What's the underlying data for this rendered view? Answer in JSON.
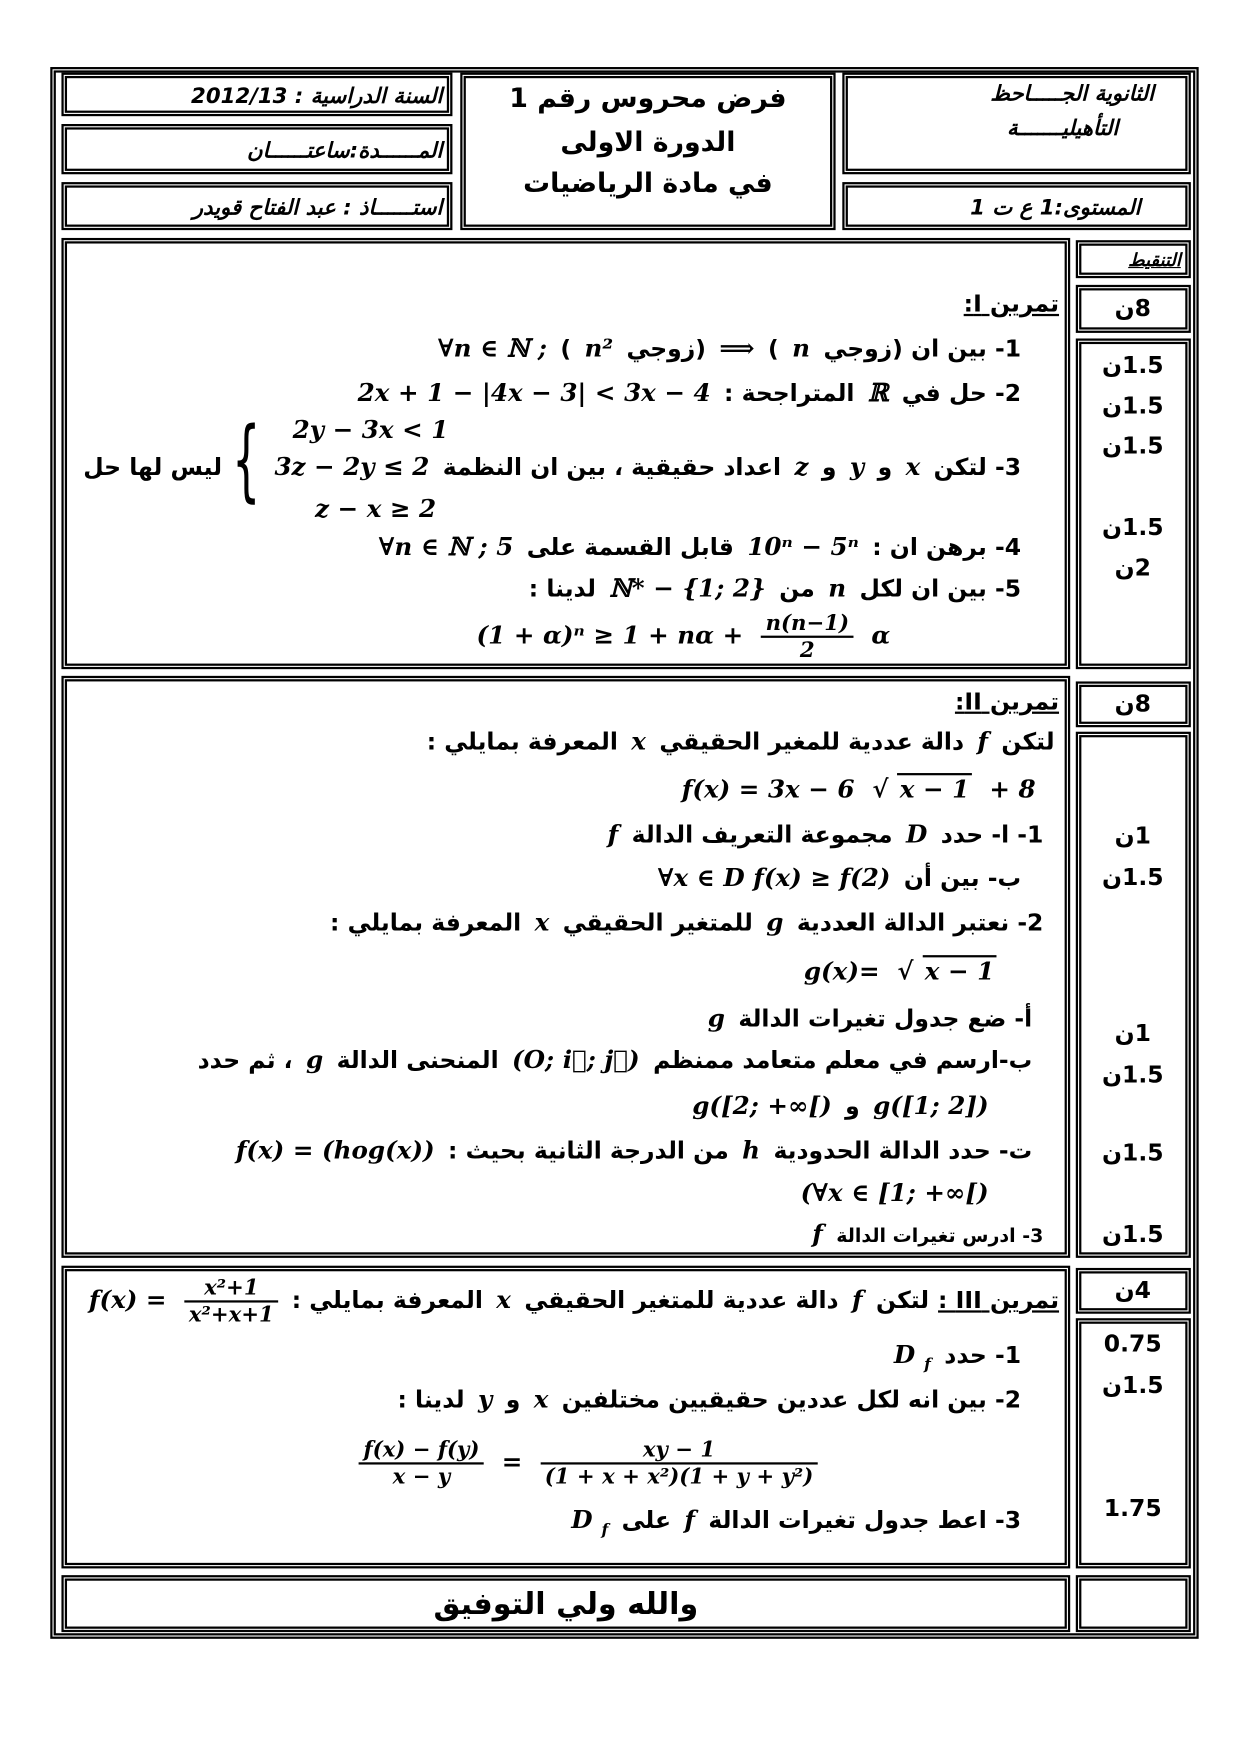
{
  "header": {
    "year": "السنة الدراسية : 2012/13",
    "duration": "المــــــدة:ساعتــــــان",
    "teacher": "استــــــاذ : عبد الفتاح قويدر",
    "title_lines": [
      "فرض محروس رقم 1",
      "الدورة الاولى",
      "في مادة الرياضيات"
    ],
    "school_lines": [
      "الثانوية الجـــــاحظ",
      "التأهيليـــــــة"
    ],
    "level": "المستوى:1 ع ت 1"
  },
  "grading_header": "التنقيط",
  "sections": [
    {
      "points": "8ن",
      "scores": [
        "1.5ن",
        "1.5ن",
        "1.5ن",
        "1.5ن",
        "2ن"
      ],
      "system": {
        "rows": [
          "2y − 3x < 1",
          "z − x ≥ 2"
        ]
      },
      "lines": [
        {
          "segs": [
            {
              "t": "تمرين I:",
              "u": true
            }
          ]
        },
        {
          "segs": [
            {
              "t": "1- بين ان (زوجي"
            },
            {
              "m": "n"
            },
            {
              "t": ")"
            },
            {
              "m": "⟹"
            },
            {
              "t": "(زوجي"
            },
            {
              "m": "n²"
            },
            {
              "t": ")"
            },
            {
              "m": "∀n ∈ ℕ ;"
            }
          ]
        },
        {
          "segs": [
            {
              "t": "2- حل في"
            },
            {
              "m": "ℝ"
            },
            {
              "t": "المتراجحة :"
            },
            {
              "m": "2x + 1 − |4x − 3| < 3x − 4"
            }
          ]
        },
        {
          "segs": [
            {
              "t": "3- لتكن"
            },
            {
              "m": "x"
            },
            {
              "t": "و"
            },
            {
              "m": "y"
            },
            {
              "t": "و"
            },
            {
              "m": "z"
            },
            {
              "t": "اعداد حقيقية ، بين ان النظمة"
            },
            {
              "m": "3z − 2y ≤ 2"
            },
            {
              "br": "{"
            },
            {
              "t": "ليس لها حل"
            }
          ]
        },
        {
          "segs": [
            {
              "t": "4- برهن ان :"
            },
            {
              "m": "10ⁿ − 5ⁿ"
            },
            {
              "t": "قابل القسمة على"
            },
            {
              "m": "∀n ∈ ℕ ; 5"
            }
          ]
        },
        {
          "segs": [
            {
              "t": "5- بين ان لكل"
            },
            {
              "m": "n"
            },
            {
              "t": "من"
            },
            {
              "m": "ℕ* − {1; 2}"
            },
            {
              "t": "لدينا :"
            }
          ]
        },
        {
          "segs": [
            {
              "m": "(1 + α)ⁿ ≥ 1 + nα +"
            },
            {
              "num": "n(n−1)",
              "den": "2"
            },
            {
              "m": "α"
            }
          ]
        }
      ]
    },
    {
      "points": "8ن",
      "scores": [
        "1ن",
        "1.5ن",
        "1ن",
        "1.5ن",
        "1.5ن",
        "1.5ن"
      ],
      "lines": [
        {
          "segs": [
            {
              "t": "تمرين II:",
              "u": true
            }
          ]
        },
        {
          "segs": [
            {
              "t": "لتكن"
            },
            {
              "m": "f"
            },
            {
              "t": "دالة عددية للمغير الحقيقي"
            },
            {
              "m": "x"
            },
            {
              "t": "المعرفة بمايلي :"
            }
          ]
        },
        {
          "segs": [
            {
              "m": "f(x)  =  3x − 6"
            },
            {
              "rad": "√",
              "sqrt": "x − 1"
            },
            {
              "m": "+ 8"
            }
          ]
        },
        {
          "segs": [
            {
              "t": "1- ا- حدد"
            },
            {
              "m": "D"
            },
            {
              "t": "مجموعة التعريف الدالة"
            },
            {
              "m": "f"
            }
          ]
        },
        {
          "segs": [
            {
              "t": "ب- بين أن"
            },
            {
              "m": "∀x ∈ D f(x) ≥ f(2)"
            }
          ]
        },
        {
          "segs": [
            {
              "t": "2- نعتبر الدالة  العددية"
            },
            {
              "m": "g"
            },
            {
              "t": "للمتغير الحقيقي"
            },
            {
              "m": "x"
            },
            {
              "t": "المعرفة بمايلي :"
            }
          ]
        },
        {
          "segs": [
            {
              "m": "g(x)="
            },
            {
              "rad": "√",
              "sqrt": "x − 1"
            }
          ]
        },
        {
          "segs": [
            {
              "t": "أ-  ضع جدول تغيرات الدالة"
            },
            {
              "m": "g"
            }
          ]
        },
        {
          "segs": [
            {
              "t": "ب-ارسم في معلم متعامد ممنظم"
            },
            {
              "m": "(O; i⃗; j⃗)"
            },
            {
              "t": "المنحنى الدالة"
            },
            {
              "m": "g"
            },
            {
              "t": "، ثم حدد"
            }
          ]
        },
        {
          "segs": [
            {
              "m": "g([1; 2])"
            },
            {
              "t": "و"
            },
            {
              "m": "g([2; +∞[)"
            }
          ]
        },
        {
          "segs": [
            {
              "t": "ت- حدد الدالة الحدودية"
            },
            {
              "m": "h"
            },
            {
              "t": "من الدرجة الثانية بحيث :"
            },
            {
              "m": "f(x) = (hog(x))"
            }
          ]
        },
        {
          "segs": [
            {
              "m": "(∀x ∈ [1; +∞[)"
            }
          ]
        },
        {
          "segs": [
            {
              "t": "3- ادرس تغيرات الدالة"
            },
            {
              "m": "f"
            }
          ]
        }
      ]
    },
    {
      "points": "4ن",
      "scores": [
        "0.75",
        "1.5ن",
        "1.75"
      ],
      "lines": [
        {
          "segs": [
            {
              "t": "تمرين III :",
              "u": true
            },
            {
              "t": "لتكن"
            },
            {
              "m": "f"
            },
            {
              "t": "دالة عددية للمتغير الحقيقي"
            },
            {
              "m": "x"
            },
            {
              "t": "المعرفة بمايلي :"
            },
            {
              "num": "x²+1",
              "den": "x²+x+1"
            },
            {
              "m": "f(x) ="
            }
          ]
        },
        {
          "segs": [
            {
              "t": "1- حدد"
            },
            {
              "m": "D",
              "sub": "f"
            }
          ]
        },
        {
          "segs": [
            {
              "t": "2- بين انه لكل عددين حقيقيين مختلفين"
            },
            {
              "m": "x"
            },
            {
              "t": "و"
            },
            {
              "m": "y"
            },
            {
              "t": "لدينا :"
            }
          ]
        },
        {
          "segs": [
            {
              "num": "f(x) − f(y)",
              "den": "x − y"
            },
            {
              "m": "="
            },
            {
              "num": "xy − 1",
              "den": "(1 + x + x²)(1 + y + y²)"
            }
          ]
        },
        {
          "segs": [
            {
              "t": "3- اعط جدول تغيرات  الدالة"
            },
            {
              "m": "f"
            },
            {
              "t": "على"
            },
            {
              "m": "D",
              "sub": "f"
            }
          ]
        }
      ]
    }
  ],
  "footer": "والله ولي التوفيق"
}
